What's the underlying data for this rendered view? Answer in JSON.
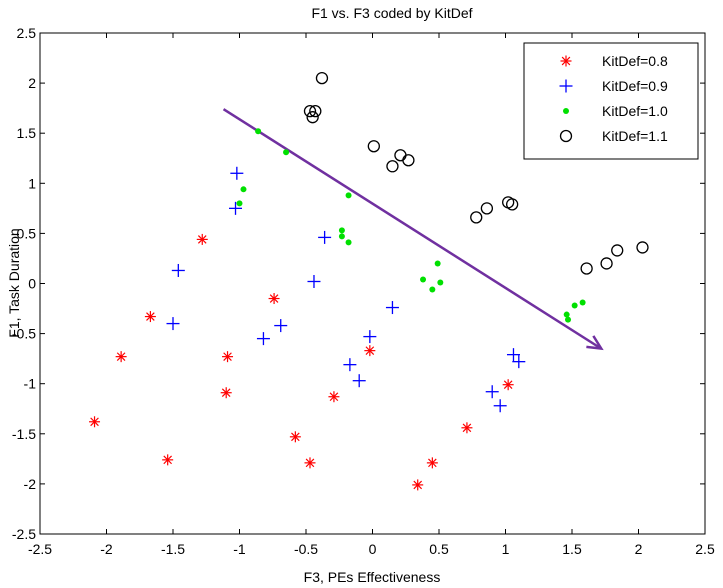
{
  "chart_data": {
    "type": "scatter",
    "title": "F1 vs. F3 coded by KitDef",
    "xlabel": "F3, PEs Effectiveness",
    "ylabel": "F1, Task Duration",
    "xlim": [
      -2.5,
      2.5
    ],
    "ylim": [
      -2.5,
      2.5
    ],
    "xticks": [
      "-2.5",
      "-2",
      "-1.5",
      "-1",
      "-0.5",
      "0",
      "0.5",
      "1",
      "1.5",
      "2",
      "2.5"
    ],
    "yticks": [
      "-2.5",
      "-2",
      "-1.5",
      "-1",
      "-0.5",
      "0",
      "0.5",
      "1",
      "1.5",
      "2",
      "2.5"
    ],
    "grid": false,
    "legend_position": "top-right",
    "series": [
      {
        "name": "KitDef=0.8",
        "marker": "asterisk",
        "color": "#ff0000",
        "points": [
          [
            -2.09,
            -1.38
          ],
          [
            -1.89,
            -0.73
          ],
          [
            -1.67,
            -0.33
          ],
          [
            -1.54,
            -1.76
          ],
          [
            -1.28,
            0.44
          ],
          [
            -1.09,
            -0.73
          ],
          [
            -1.1,
            -1.09
          ],
          [
            -0.74,
            -0.15
          ],
          [
            -0.58,
            -1.53
          ],
          [
            -0.47,
            -1.79
          ],
          [
            -0.29,
            -1.13
          ],
          [
            -0.02,
            -0.67
          ],
          [
            0.34,
            -2.01
          ],
          [
            0.45,
            -1.79
          ],
          [
            0.71,
            -1.44
          ],
          [
            1.02,
            -1.01
          ]
        ]
      },
      {
        "name": "KitDef=0.9",
        "marker": "plus",
        "color": "#0000ff",
        "points": [
          [
            -1.46,
            0.13
          ],
          [
            -1.5,
            -0.4
          ],
          [
            -1.02,
            1.1
          ],
          [
            -1.03,
            0.75
          ],
          [
            -0.82,
            -0.55
          ],
          [
            -0.69,
            -0.42
          ],
          [
            -0.36,
            0.46
          ],
          [
            -0.44,
            0.02
          ],
          [
            -0.17,
            -0.81
          ],
          [
            -0.1,
            -0.97
          ],
          [
            -0.02,
            -0.53
          ],
          [
            0.15,
            -0.24
          ],
          [
            0.9,
            -1.08
          ],
          [
            0.96,
            -1.22
          ],
          [
            1.06,
            -0.71
          ],
          [
            1.1,
            -0.78
          ]
        ]
      },
      {
        "name": "KitDef=1.0",
        "marker": "dot",
        "color": "#00e000",
        "points": [
          [
            -0.86,
            1.52
          ],
          [
            -0.65,
            1.31
          ],
          [
            -0.97,
            0.94
          ],
          [
            -1.0,
            0.8
          ],
          [
            -0.18,
            0.88
          ],
          [
            -0.23,
            0.53
          ],
          [
            -0.23,
            0.47
          ],
          [
            -0.18,
            0.41
          ],
          [
            0.38,
            0.04
          ],
          [
            0.45,
            -0.06
          ],
          [
            0.49,
            0.2
          ],
          [
            0.51,
            0.01
          ],
          [
            1.46,
            -0.31
          ],
          [
            1.47,
            -0.36
          ],
          [
            1.52,
            -0.22
          ],
          [
            1.58,
            -0.19
          ]
        ]
      },
      {
        "name": "KitDef=1.1",
        "marker": "circle",
        "color": "#000000",
        "points": [
          [
            -0.38,
            2.05
          ],
          [
            -0.47,
            1.72
          ],
          [
            -0.43,
            1.72
          ],
          [
            -0.45,
            1.66
          ],
          [
            0.01,
            1.37
          ],
          [
            0.15,
            1.17
          ],
          [
            0.21,
            1.28
          ],
          [
            0.27,
            1.23
          ],
          [
            0.78,
            0.66
          ],
          [
            0.86,
            0.75
          ],
          [
            1.02,
            0.81
          ],
          [
            1.05,
            0.79
          ],
          [
            1.61,
            0.15
          ],
          [
            1.76,
            0.2
          ],
          [
            1.84,
            0.33
          ],
          [
            2.03,
            0.36
          ]
        ]
      }
    ],
    "annotations": [
      {
        "type": "arrow",
        "color": "#7030a0",
        "from": [
          -1.12,
          1.74
        ],
        "to": [
          1.72,
          -0.65
        ]
      }
    ]
  }
}
